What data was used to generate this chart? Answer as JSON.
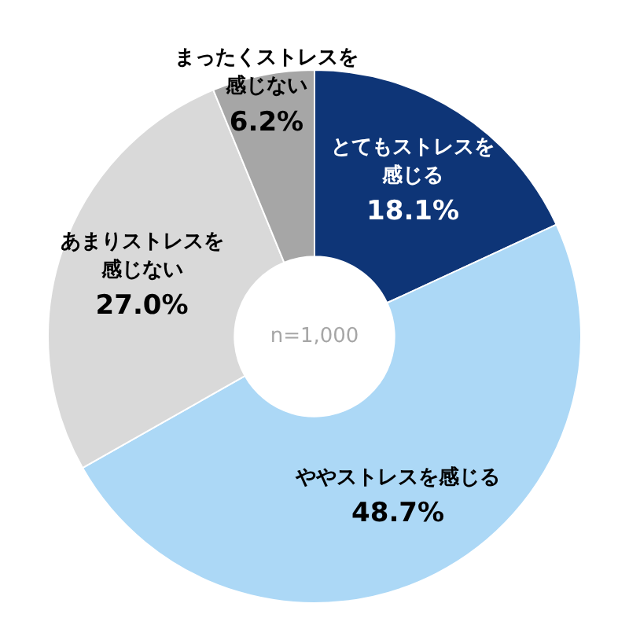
{
  "chart_data": {
    "type": "donut",
    "categories": [
      "とてもストレスを感じる",
      "ややストレスを感じる",
      "あまりストレスを感じない",
      "まったくストレスを感じない"
    ],
    "values": [
      18.1,
      48.7,
      27.0,
      6.2
    ],
    "value_labels": [
      "18.1%",
      "48.7%",
      "27.0%",
      "6.2%"
    ],
    "colors": [
      "#0e3577",
      "#acd8f6",
      "#d9d9d9",
      "#a6a6a6"
    ],
    "annotations": [
      "n=1,000"
    ],
    "legend": false
  }
}
